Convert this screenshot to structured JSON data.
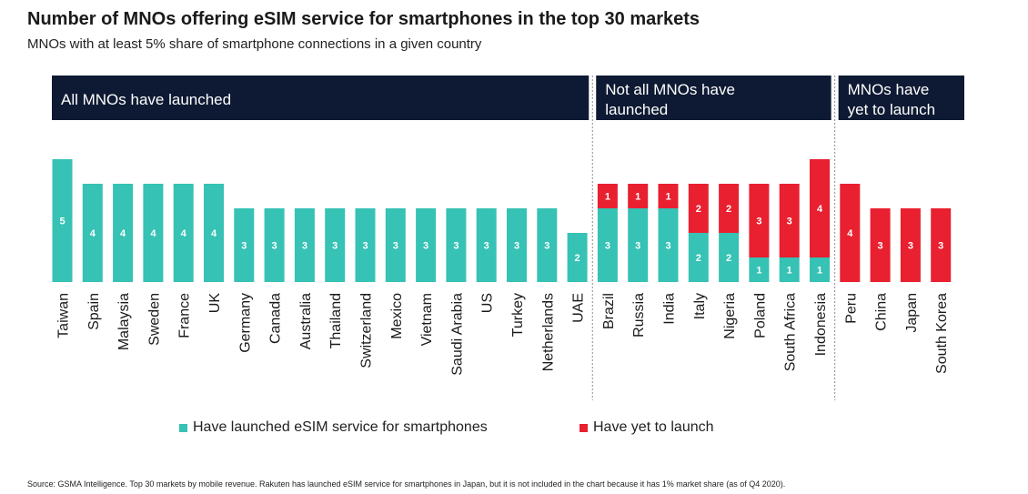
{
  "title": "Number of MNOs offering eSIM service for smartphones in the top 30 markets",
  "subtitle": "MNOs with at least 5% share of smartphone connections in a given country",
  "source": "Source: GSMA Intelligence. Top 30 markets by mobile revenue. Rakuten has launched eSIM service for smartphones in Japan, but it is not included in the chart because it has 1% market share (as of Q4 2020).",
  "colors": {
    "launched": "#36c2b4",
    "yet": "#e8202f",
    "header_bg": "#0e1a33",
    "divider": "#8a8a8a"
  },
  "chart_data": {
    "type": "bar",
    "stacked": true,
    "groups": [
      {
        "label": "All MNOs have launched",
        "start": 0,
        "end": 18
      },
      {
        "label": "Not all MNOs have launched",
        "label_lines": [
          "Not all MNOs have",
          "launched"
        ],
        "start": 18,
        "end": 26
      },
      {
        "label": "MNOs have yet to launch",
        "label_lines": [
          "MNOs have",
          "yet to launch"
        ],
        "start": 26,
        "end": 30
      }
    ],
    "categories": [
      "Taiwan",
      "Spain",
      "Malaysia",
      "Sweden",
      "France",
      "UK",
      "Germany",
      "Canada",
      "Australia",
      "Thailand",
      "Switzerland",
      "Mexico",
      "Vietnam",
      "Saudi Arabia",
      "US",
      "Turkey",
      "Netherlands",
      "UAE",
      "Brazil",
      "Russia",
      "India",
      "Italy",
      "Nigeria",
      "Poland",
      "South Africa",
      "Indonesia",
      "Peru",
      "China",
      "Japan",
      "South Korea"
    ],
    "series": [
      {
        "name": "Have launched eSIM service for smartphones",
        "values": [
          5,
          4,
          4,
          4,
          4,
          4,
          3,
          3,
          3,
          3,
          3,
          3,
          3,
          3,
          3,
          3,
          3,
          2,
          3,
          3,
          3,
          2,
          2,
          1,
          1,
          1,
          0,
          0,
          0,
          0
        ]
      },
      {
        "name": "Have yet to launch",
        "values": [
          0,
          0,
          0,
          0,
          0,
          0,
          0,
          0,
          0,
          0,
          0,
          0,
          0,
          0,
          0,
          0,
          0,
          0,
          1,
          1,
          1,
          2,
          2,
          3,
          3,
          4,
          4,
          3,
          3,
          3
        ]
      }
    ],
    "ylim": [
      0,
      5
    ],
    "legend": "bottom",
    "grid": false
  }
}
